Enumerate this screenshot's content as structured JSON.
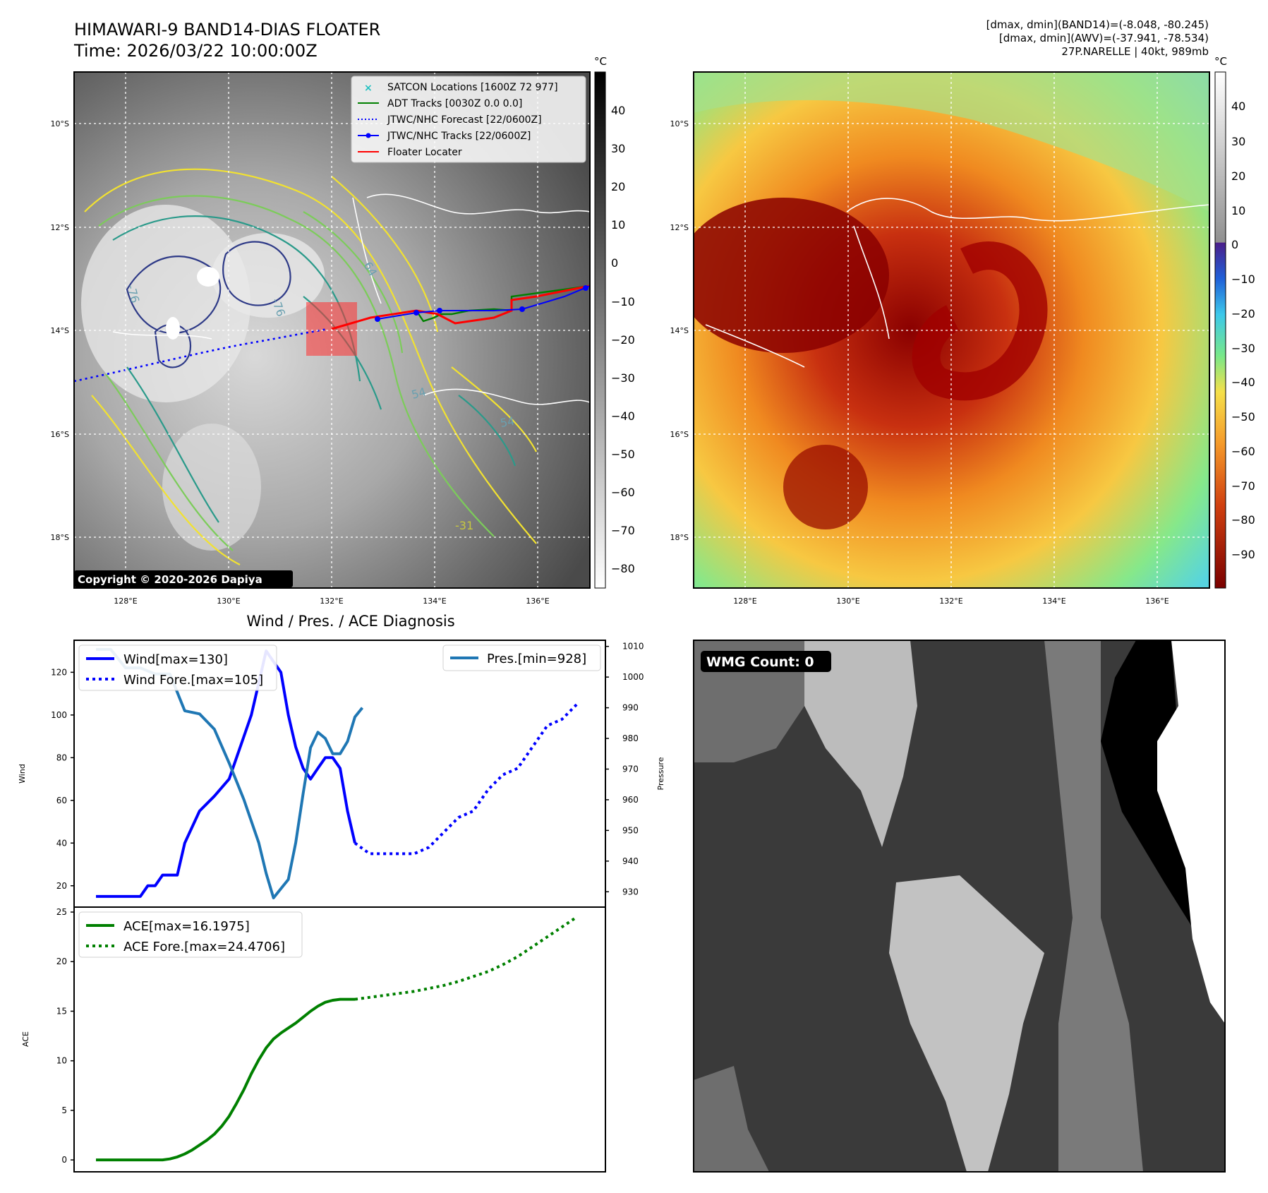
{
  "header": {
    "title_line1": "HIMAWARI-9 BAND14-DIAS FLOATER",
    "title_line2": "Time: 2026/03/22 10:00:00Z",
    "info_line1": "[dmax, dmin](BAND14)=(-8.048, -80.245)",
    "info_line2": "[dmax, dmin](AWV)=(-37.941, -78.534)",
    "info_line3": "27P.NARELLE | 40kt, 989mb"
  },
  "map": {
    "lat_labels": [
      "10°S",
      "12°S",
      "14°S",
      "16°S",
      "18°S"
    ],
    "lon_labels": [
      "128°E",
      "130°E",
      "132°E",
      "134°E",
      "136°E"
    ],
    "legend": [
      {
        "label": "SATCON Locations [1600Z 72 977]",
        "color": "#20c0c0",
        "style": "x"
      },
      {
        "label": "ADT Tracks [0030Z 0.0 0.0]",
        "color": "#008000",
        "style": "solid"
      },
      {
        "label": "JTWC/NHC Forecast [22/0600Z]",
        "color": "#0000ff",
        "style": "dotted"
      },
      {
        "label": "JTWC/NHC Tracks [22/0600Z]",
        "color": "#0000ff",
        "style": "solid-dot"
      },
      {
        "label": "Floater Locater",
        "color": "#ff0000",
        "style": "solid"
      }
    ],
    "copyright": "Copyright © 2020-2026 Dapiya",
    "colorbar_unit": "°C",
    "gray_ticks": [
      "40",
      "30",
      "20",
      "10",
      "0",
      "−10",
      "−20",
      "−30",
      "−40",
      "−50",
      "−60",
      "−70",
      "−80"
    ],
    "color_ticks": [
      "40",
      "30",
      "20",
      "10",
      "0",
      "−10",
      "−20",
      "−30",
      "−40",
      "−50",
      "−60",
      "−70",
      "−80",
      "−90"
    ],
    "contour_labels": [
      "64",
      "-76",
      "-76",
      "54",
      "54",
      "-31"
    ],
    "colors": {
      "contour_dark": "#2e3a87",
      "contour_teal": "#2a9a8a",
      "contour_green": "#7ccc5a",
      "contour_yellow": "#f2e230",
      "track_blue": "#0000ff",
      "track_green": "#008000",
      "floater_red": "#ff0000"
    }
  },
  "wmg": {
    "label": "WMG Count: 0"
  },
  "chart_data": [
    {
      "type": "line",
      "title": "Wind / Pres. / ACE Diagnosis",
      "ylabel": "Wind",
      "ylabel_right": "Pressure",
      "ylim": [
        10,
        135
      ],
      "ylim_right": [
        925,
        1012
      ],
      "yticks": [
        20,
        40,
        60,
        80,
        100,
        120
      ],
      "yticks_right": [
        930,
        940,
        950,
        960,
        970,
        980,
        990,
        1000,
        1010
      ],
      "xlim": [
        0,
        66
      ],
      "series": [
        {
          "name": "Wind[max=130]",
          "color": "#0000ff",
          "style": "solid",
          "x": [
            0,
            3,
            6,
            7,
            8,
            9,
            10,
            11,
            12,
            14,
            16,
            18,
            19,
            20,
            21,
            22,
            23,
            24,
            25,
            26,
            27,
            28,
            29,
            30,
            31,
            32,
            33,
            34,
            35
          ],
          "y": [
            15,
            15,
            15,
            20,
            20,
            25,
            25,
            25,
            40,
            55,
            62,
            70,
            80,
            90,
            100,
            115,
            130,
            125,
            120,
            100,
            85,
            75,
            70,
            75,
            80,
            80,
            75,
            55,
            40
          ]
        },
        {
          "name": "Wind Fore.[max=105]",
          "color": "#0000ff",
          "style": "dotted",
          "x": [
            35,
            37,
            39,
            41,
            43,
            45,
            47,
            49,
            51,
            53,
            55,
            57,
            59,
            61,
            63,
            65
          ],
          "y": [
            40,
            35,
            35,
            35,
            35,
            38,
            45,
            52,
            55,
            65,
            72,
            75,
            85,
            95,
            98,
            105
          ]
        },
        {
          "name": "Pres.[min=928]",
          "color": "#1f77b4",
          "style": "solid",
          "axis": "right",
          "x": [
            0,
            2,
            4,
            6,
            8,
            10,
            12,
            14,
            16,
            18,
            20,
            22,
            23,
            24,
            25,
            26,
            27,
            28,
            29,
            30,
            31,
            32,
            33,
            34,
            35,
            36
          ],
          "y": [
            1009,
            1009,
            1003,
            1003,
            1001,
            1001,
            989,
            988,
            983,
            972,
            960,
            946,
            936,
            928,
            931,
            934,
            946,
            962,
            977,
            982,
            980,
            975,
            975,
            979,
            987,
            990
          ]
        }
      ]
    },
    {
      "type": "line",
      "ylabel": "ACE",
      "ylim": [
        -1.2,
        25.5
      ],
      "yticks": [
        0,
        5,
        10,
        15,
        20,
        25
      ],
      "xlim": [
        0,
        66
      ],
      "series": [
        {
          "name": "ACE[max=16.1975]",
          "color": "#008000",
          "style": "solid",
          "x": [
            0,
            3,
            6,
            9,
            10,
            11,
            12,
            13,
            14,
            15,
            16,
            17,
            18,
            19,
            20,
            21,
            22,
            23,
            24,
            25,
            26,
            27,
            28,
            29,
            30,
            31,
            32,
            33,
            34,
            35
          ],
          "y": [
            0,
            0,
            0,
            0,
            0.1,
            0.3,
            0.6,
            1.0,
            1.5,
            2.0,
            2.6,
            3.4,
            4.4,
            5.7,
            7.1,
            8.7,
            10.1,
            11.3,
            12.2,
            12.8,
            13.3,
            13.8,
            14.4,
            15.0,
            15.5,
            15.9,
            16.1,
            16.2,
            16.2,
            16.2
          ]
        },
        {
          "name": "ACE Fore.[max=24.4706]",
          "color": "#008000",
          "style": "dotted",
          "x": [
            35,
            37,
            39,
            41,
            43,
            45,
            47,
            49,
            51,
            53,
            55,
            57,
            59,
            61,
            63,
            65
          ],
          "y": [
            16.2,
            16.4,
            16.6,
            16.8,
            17.0,
            17.3,
            17.6,
            18.0,
            18.5,
            19.0,
            19.7,
            20.5,
            21.5,
            22.5,
            23.5,
            24.5
          ]
        }
      ]
    }
  ]
}
